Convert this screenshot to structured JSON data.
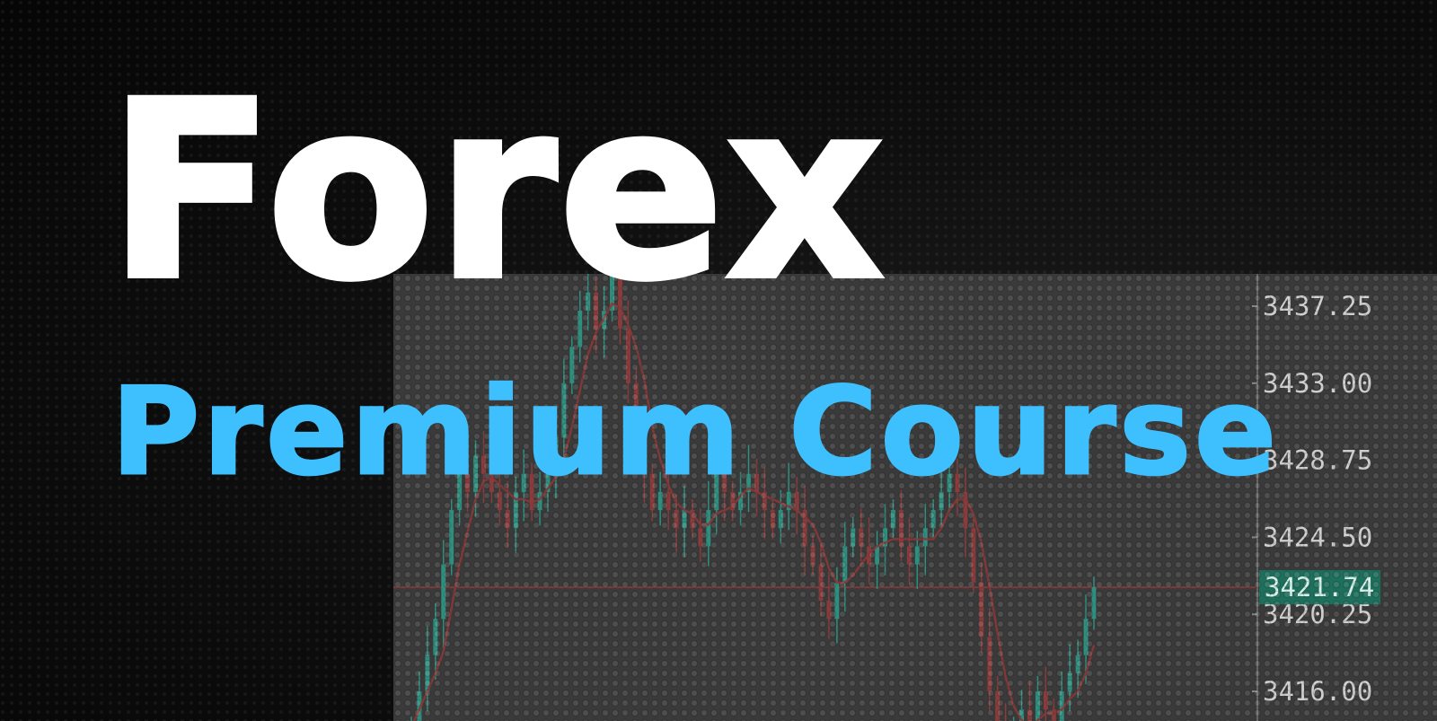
{
  "title": "Forex",
  "subtitle": "Premium Course",
  "colors": {
    "title": "#ffffff",
    "subtitle": "#3ec0ff",
    "background": "#0b0b0b",
    "chart_panel": "#3a3a3a",
    "candle_up": "#2f8f7f",
    "candle_down": "#8a3c3c",
    "moving_average": "#8a3838",
    "current_price_badge": "#1e6f5c"
  },
  "price_axis": {
    "labels": [
      "3437.25",
      "3433.00",
      "3428.75",
      "3424.50",
      "3420.25",
      "3416.00"
    ],
    "current_price": "3421.74"
  },
  "chart_data": {
    "type": "candlestick",
    "y_ticks": [
      3437.25,
      3433.0,
      3428.75,
      3424.5,
      3420.25,
      3416.0
    ],
    "current_price": 3421.74,
    "close_series": [
      3414,
      3416,
      3418,
      3420,
      3423,
      3426,
      3428,
      3427,
      3429,
      3428,
      3427,
      3426,
      3425,
      3427,
      3428,
      3426,
      3427,
      3428,
      3430,
      3433,
      3435,
      3437,
      3438,
      3436,
      3437,
      3439,
      3436,
      3433,
      3430,
      3428,
      3426,
      3427,
      3426,
      3425,
      3426,
      3425,
      3424,
      3426,
      3428,
      3427,
      3426,
      3427,
      3428,
      3427,
      3426,
      3425,
      3426,
      3427,
      3426,
      3424,
      3423,
      3421,
      3420,
      3422,
      3424,
      3425,
      3424,
      3423,
      3424,
      3425,
      3426,
      3424,
      3423,
      3424,
      3425,
      3426,
      3427,
      3428,
      3427,
      3425,
      3422,
      3419,
      3416,
      3414,
      3413,
      3414,
      3415,
      3414,
      3416,
      3415,
      3414,
      3416,
      3417,
      3418,
      3420,
      3421.74
    ]
  }
}
